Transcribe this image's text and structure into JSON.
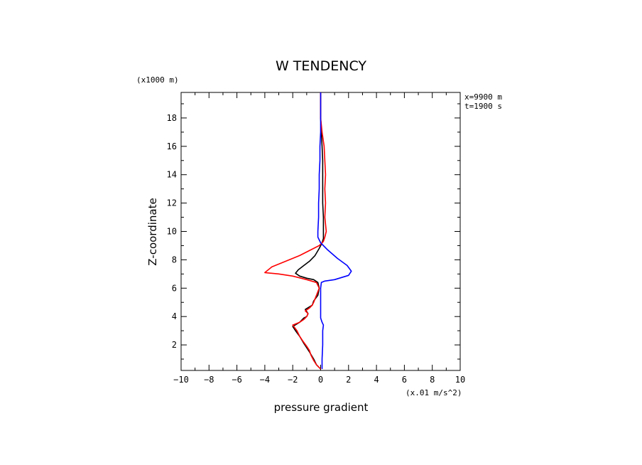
{
  "chart_data": {
    "type": "line",
    "title": "W TENDENCY",
    "xlabel": "pressure gradient",
    "ylabel": "Z-coordinate",
    "x_units": "(x.01 m/s^2)",
    "y_units": "(x1000 m)",
    "annotations": [
      "x=9900 m",
      "t=1900 s"
    ],
    "xlim": [
      -10,
      10
    ],
    "ylim": [
      0.2,
      19.8
    ],
    "x_ticks": [
      -10,
      -8,
      -6,
      -4,
      -2,
      0,
      2,
      4,
      6,
      8,
      10
    ],
    "y_ticks": [
      2,
      4,
      6,
      8,
      10,
      12,
      14,
      16,
      18
    ],
    "x_tick_labels": [
      "−10",
      "−8",
      "−6",
      "−4",
      "−2",
      "0",
      "2",
      "4",
      "6",
      "8",
      "10"
    ],
    "y_tick_labels": [
      "2",
      "4",
      "6",
      "8",
      "10",
      "12",
      "14",
      "16",
      "18"
    ],
    "grid": false,
    "series": [
      {
        "color": "#000000",
        "points": [
          [
            0.0,
            0.3
          ],
          [
            -0.3,
            0.6
          ],
          [
            -0.5,
            1.0
          ],
          [
            -0.8,
            1.5
          ],
          [
            -1.0,
            1.8
          ],
          [
            -1.2,
            2.1
          ],
          [
            -1.5,
            2.6
          ],
          [
            -1.8,
            3.0
          ],
          [
            -2.0,
            3.3
          ],
          [
            -1.5,
            3.6
          ],
          [
            -1.2,
            3.9
          ],
          [
            -1.0,
            4.0
          ],
          [
            -0.9,
            4.2
          ],
          [
            -1.1,
            4.5
          ],
          [
            -0.6,
            4.8
          ],
          [
            -0.5,
            5.1
          ],
          [
            -0.2,
            5.5
          ],
          [
            -0.1,
            6.0
          ],
          [
            -0.2,
            6.4
          ],
          [
            -0.5,
            6.6
          ],
          [
            -1.0,
            6.7
          ],
          [
            -1.5,
            6.85
          ],
          [
            -1.8,
            7.05
          ],
          [
            -1.6,
            7.3
          ],
          [
            -1.2,
            7.6
          ],
          [
            -0.8,
            7.9
          ],
          [
            -0.4,
            8.3
          ],
          [
            -0.1,
            8.8
          ],
          [
            0.1,
            9.2
          ],
          [
            0.2,
            9.5
          ],
          [
            0.2,
            10.0
          ],
          [
            0.2,
            11.0
          ],
          [
            0.15,
            12.0
          ],
          [
            0.15,
            13.0
          ],
          [
            0.15,
            14.0
          ],
          [
            0.15,
            15.0
          ],
          [
            0.1,
            16.0
          ],
          [
            0.05,
            17.0
          ],
          [
            0.0,
            18.0
          ],
          [
            0.0,
            19.8
          ]
        ]
      },
      {
        "color": "#ff0000",
        "points": [
          [
            0.0,
            0.3
          ],
          [
            -0.3,
            0.6
          ],
          [
            -0.5,
            0.9
          ],
          [
            -0.7,
            1.3
          ],
          [
            -0.8,
            1.6
          ],
          [
            -1.0,
            1.9
          ],
          [
            -1.3,
            2.3
          ],
          [
            -1.5,
            2.6
          ],
          [
            -1.7,
            3.0
          ],
          [
            -2.0,
            3.4
          ],
          [
            -1.5,
            3.6
          ],
          [
            -1.2,
            3.8
          ],
          [
            -1.0,
            4.0
          ],
          [
            -0.9,
            4.2
          ],
          [
            -1.1,
            4.4
          ],
          [
            -0.8,
            4.6
          ],
          [
            -0.6,
            4.8
          ],
          [
            -0.5,
            5.0
          ],
          [
            -0.3,
            5.5
          ],
          [
            -0.1,
            6.0
          ],
          [
            -0.3,
            6.4
          ],
          [
            -1.0,
            6.6
          ],
          [
            -2.0,
            6.85
          ],
          [
            -3.0,
            7.0
          ],
          [
            -4.0,
            7.1
          ],
          [
            -3.5,
            7.5
          ],
          [
            -2.5,
            7.9
          ],
          [
            -1.5,
            8.3
          ],
          [
            -0.7,
            8.7
          ],
          [
            -0.1,
            9.0
          ],
          [
            0.2,
            9.3
          ],
          [
            0.3,
            9.6
          ],
          [
            0.4,
            10.0
          ],
          [
            0.3,
            11.0
          ],
          [
            0.35,
            12.0
          ],
          [
            0.3,
            13.0
          ],
          [
            0.35,
            14.0
          ],
          [
            0.3,
            15.0
          ],
          [
            0.25,
            16.0
          ],
          [
            0.1,
            17.0
          ],
          [
            0.0,
            18.0
          ],
          [
            0.0,
            19.8
          ]
        ]
      },
      {
        "color": "#0000ff",
        "points": [
          [
            0.1,
            0.3
          ],
          [
            0.1,
            1.0
          ],
          [
            0.15,
            2.0
          ],
          [
            0.15,
            3.0
          ],
          [
            0.2,
            3.4
          ],
          [
            0.1,
            3.6
          ],
          [
            0.0,
            3.9
          ],
          [
            0.0,
            5.0
          ],
          [
            0.0,
            6.0
          ],
          [
            0.05,
            6.4
          ],
          [
            0.3,
            6.5
          ],
          [
            1.0,
            6.6
          ],
          [
            2.0,
            6.9
          ],
          [
            2.2,
            7.2
          ],
          [
            1.9,
            7.6
          ],
          [
            1.2,
            8.1
          ],
          [
            0.5,
            8.7
          ],
          [
            0.0,
            9.2
          ],
          [
            -0.2,
            9.6
          ],
          [
            -0.2,
            10.0
          ],
          [
            -0.15,
            11.0
          ],
          [
            -0.15,
            12.0
          ],
          [
            -0.1,
            13.0
          ],
          [
            -0.1,
            14.0
          ],
          [
            -0.05,
            15.0
          ],
          [
            -0.05,
            16.0
          ],
          [
            0.0,
            17.0
          ],
          [
            0.0,
            18.0
          ],
          [
            0.0,
            19.8
          ]
        ]
      }
    ]
  }
}
